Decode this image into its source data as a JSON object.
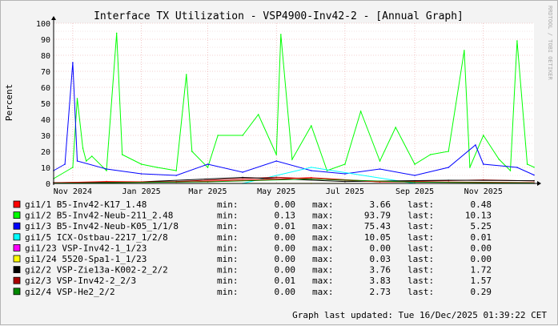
{
  "title": "Interface TX Utilization - VSP4900-Inv42-2 - [Annual Graph]",
  "watermark": "RRDTOOL / TOBI OETIKER",
  "footer": "Graph last updated: Tue 16/Dec/2025 01:39:22 CET",
  "colors": {
    "bg": "#f3f3f3",
    "canvas": "#ffffff",
    "grid": "#e8c8c8",
    "majorgrid": "#e8a0a0",
    "axis": "#000000"
  },
  "chart_data": {
    "type": "line",
    "ylabel": "Percent",
    "ylim": [
      0,
      100
    ],
    "yticks": [
      0,
      10,
      20,
      30,
      40,
      50,
      60,
      70,
      80,
      90,
      100
    ],
    "x_start": "2024-10-15",
    "x_end": "2025-12-16",
    "xticks": [
      {
        "label": "Nov 2024",
        "date": "2024-11-01"
      },
      {
        "label": "Jan 2025",
        "date": "2025-01-01"
      },
      {
        "label": "Mar 2025",
        "date": "2025-03-01"
      },
      {
        "label": "May 2025",
        "date": "2025-05-01"
      },
      {
        "label": "Jul 2025",
        "date": "2025-07-01"
      },
      {
        "label": "Sep 2025",
        "date": "2025-09-01"
      },
      {
        "label": "Nov 2025",
        "date": "2025-11-01"
      }
    ],
    "legend_columns": {
      "min": "min:",
      "max": "max:",
      "last": "last:"
    },
    "series": [
      {
        "name": "gi1/1 B5-Inv42-K17_1.48",
        "color": "#ff0000",
        "min": "0.00",
        "max": "3.66",
        "last": "0.48",
        "x": [
          "2024-10-15",
          "2024-12-01",
          "2025-02-01",
          "2025-04-01",
          "2025-06-01",
          "2025-08-01",
          "2025-10-01",
          "2025-12-16"
        ],
        "y": [
          0.4,
          1.2,
          0.8,
          2.0,
          3.66,
          1.0,
          0.9,
          0.48
        ]
      },
      {
        "name": "gi1/2 B5-Inv42-Neub-211_2.48",
        "color": "#00ff00",
        "min": "0.13",
        "max": "93.79",
        "last": "10.13",
        "x": [
          "2024-10-15",
          "2024-11-01",
          "2024-11-05",
          "2024-11-10",
          "2024-11-13",
          "2024-11-18",
          "2024-12-01",
          "2024-12-10",
          "2024-12-15",
          "2025-01-01",
          "2025-01-15",
          "2025-02-01",
          "2025-02-10",
          "2025-02-15",
          "2025-03-01",
          "2025-03-10",
          "2025-04-01",
          "2025-04-15",
          "2025-05-01",
          "2025-05-05",
          "2025-05-15",
          "2025-06-01",
          "2025-06-15",
          "2025-07-01",
          "2025-07-15",
          "2025-08-01",
          "2025-08-15",
          "2025-09-01",
          "2025-09-15",
          "2025-10-01",
          "2025-10-15",
          "2025-10-20",
          "2025-11-01",
          "2025-11-15",
          "2025-11-25",
          "2025-12-01",
          "2025-12-10",
          "2025-12-16"
        ],
        "y": [
          3,
          10,
          53,
          22,
          14,
          17,
          8,
          93.79,
          18,
          12,
          10,
          8,
          68,
          20,
          10,
          30,
          30,
          43,
          18,
          93,
          15,
          36,
          8,
          12,
          45,
          14,
          35,
          12,
          18,
          20,
          83,
          10,
          30,
          15,
          8,
          89,
          12,
          10.13
        ]
      },
      {
        "name": "gi1/3 B5-Inv42-Neub-K05_1/1/8",
        "color": "#0000ff",
        "min": "0.01",
        "max": "75.43",
        "last": "5.25",
        "x": [
          "2024-10-15",
          "2024-10-25",
          "2024-11-01",
          "2024-11-05",
          "2024-12-01",
          "2025-01-01",
          "2025-02-01",
          "2025-03-01",
          "2025-04-01",
          "2025-05-01",
          "2025-06-01",
          "2025-07-01",
          "2025-08-01",
          "2025-09-01",
          "2025-10-01",
          "2025-10-25",
          "2025-11-01",
          "2025-12-01",
          "2025-12-16"
        ],
        "y": [
          8,
          12,
          75.43,
          14,
          9,
          6,
          5,
          12,
          7,
          14,
          8,
          6,
          9,
          5,
          10,
          24,
          12,
          10,
          5.25
        ]
      },
      {
        "name": "gi1/5 ICX-Ostbau-2217_1/2/8",
        "color": "#00ffff",
        "min": "0.00",
        "max": "10.05",
        "last": "0.01",
        "x": [
          "2024-10-15",
          "2025-04-01",
          "2025-06-01",
          "2025-09-01",
          "2025-12-16"
        ],
        "y": [
          0.0,
          0.0,
          10.05,
          0.0,
          0.01
        ]
      },
      {
        "name": "gi1/23 VSP-Inv42-1_1/23",
        "color": "#ff00ff",
        "min": "0.00",
        "max": "0.00",
        "last": "0.00",
        "x": [
          "2024-10-15",
          "2025-12-16"
        ],
        "y": [
          0,
          0
        ]
      },
      {
        "name": "gi1/24 5520-Spa1-1_1/23",
        "color": "#ffff00",
        "min": "0.00",
        "max": "0.03",
        "last": "0.00",
        "x": [
          "2024-10-15",
          "2025-06-01",
          "2025-12-16"
        ],
        "y": [
          0,
          0.03,
          0
        ]
      },
      {
        "name": "gi2/2 VSP-Zie13a-K002-2_2/2",
        "color": "#000000",
        "min": "0.00",
        "max": "3.76",
        "last": "1.72",
        "x": [
          "2024-10-15",
          "2025-01-01",
          "2025-04-01",
          "2025-07-01",
          "2025-10-01",
          "2025-12-16"
        ],
        "y": [
          0.5,
          1.0,
          3.76,
          1.2,
          2.0,
          1.72
        ]
      },
      {
        "name": "gi2/3 VSP-Inv42-2_2/3",
        "color": "#aa0000",
        "min": "0.01",
        "max": "3.83",
        "last": "1.57",
        "x": [
          "2024-10-15",
          "2025-02-01",
          "2025-05-01",
          "2025-08-01",
          "2025-11-01",
          "2025-12-16"
        ],
        "y": [
          0.4,
          1.2,
          3.83,
          1.0,
          2.2,
          1.57
        ]
      },
      {
        "name": "gi2/4 VSP-He2_2/2",
        "color": "#008800",
        "min": "0.00",
        "max": "2.73",
        "last": "0.29",
        "x": [
          "2024-10-15",
          "2025-03-01",
          "2025-06-01",
          "2025-09-01",
          "2025-12-16"
        ],
        "y": [
          0.2,
          1.0,
          2.73,
          0.8,
          0.29
        ]
      }
    ]
  }
}
